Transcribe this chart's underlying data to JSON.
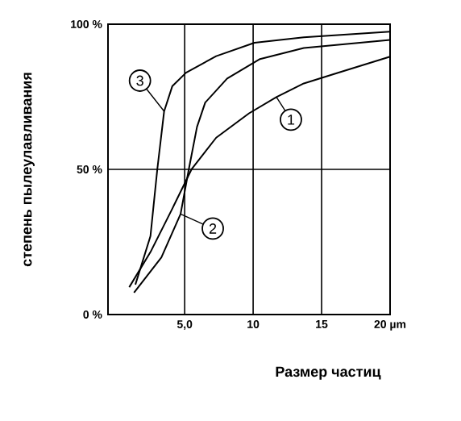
{
  "chart_data": {
    "type": "line",
    "xlabel": "Размер частиц",
    "ylabel": "степень пылеулавливания",
    "xlim": [
      -0.6,
      20
    ],
    "ylim": [
      0,
      100
    ],
    "xticks": [
      {
        "value": 5,
        "label": "5,0"
      },
      10,
      15,
      {
        "value": 20,
        "label": "20 µm"
      }
    ],
    "yticks": [
      {
        "value": 0,
        "label": "0 %"
      },
      {
        "value": 50,
        "label": "50 %"
      },
      {
        "value": 100,
        "label": "100 %"
      }
    ],
    "grid": true,
    "marker": "none",
    "line_style": "solid",
    "series": [
      {
        "name": "1",
        "color": "#000000",
        "x": [
          0.95,
          2.5,
          4.1,
          5.5,
          7.3,
          9.7,
          11.7,
          13.7,
          16.1,
          20
        ],
        "values": [
          9.4,
          21.5,
          36.5,
          50,
          60.9,
          69.3,
          74.9,
          79.6,
          83.1,
          88.8
        ]
      },
      {
        "name": "2",
        "color": "#000000",
        "x": [
          1.3,
          3.3,
          4.7,
          5.3,
          5.9,
          6.5,
          8.1,
          10.5,
          13.7,
          20
        ],
        "values": [
          7.5,
          19.7,
          34.6,
          50,
          64.6,
          73,
          81.3,
          88,
          91.8,
          94.6
        ]
      },
      {
        "name": "3",
        "color": "#000000",
        "x": [
          1.4,
          2.5,
          3.0,
          3.5,
          4.1,
          5.1,
          7.3,
          10.1,
          13.7,
          20
        ],
        "values": [
          10.3,
          27,
          50,
          70,
          78.7,
          83.3,
          89,
          93.6,
          95.5,
          97.4
        ]
      }
    ]
  }
}
